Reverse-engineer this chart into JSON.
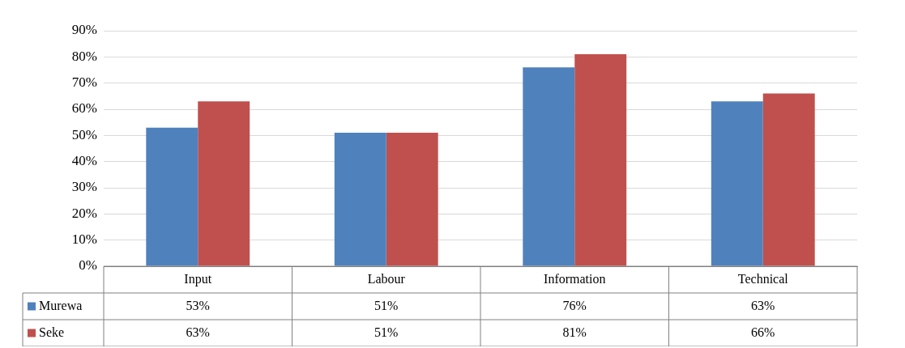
{
  "chart_data": {
    "type": "bar",
    "categories": [
      "Input",
      "Labour",
      "Information",
      "Technical"
    ],
    "series": [
      {
        "name": "Murewa",
        "color": "#4f81bd",
        "values": [
          53,
          51,
          76,
          63
        ],
        "value_labels": [
          "53%",
          "51%",
          "76%",
          "63%"
        ]
      },
      {
        "name": "Seke",
        "color": "#c0504d",
        "values": [
          63,
          51,
          81,
          66
        ],
        "value_labels": [
          "63%",
          "51%",
          "81%",
          "66%"
        ]
      }
    ],
    "ylim": [
      0,
      90
    ],
    "yticks": [
      {
        "value": 0,
        "label": "0%"
      },
      {
        "value": 10,
        "label": "10%"
      },
      {
        "value": 20,
        "label": "20%"
      },
      {
        "value": 30,
        "label": "30%"
      },
      {
        "value": 40,
        "label": "40%"
      },
      {
        "value": 50,
        "label": "50%"
      },
      {
        "value": 60,
        "label": "60%"
      },
      {
        "value": 70,
        "label": "70%"
      },
      {
        "value": 80,
        "label": "80%"
      },
      {
        "value": 90,
        "label": "90%"
      }
    ],
    "grid": "y",
    "legend": "bottom"
  }
}
